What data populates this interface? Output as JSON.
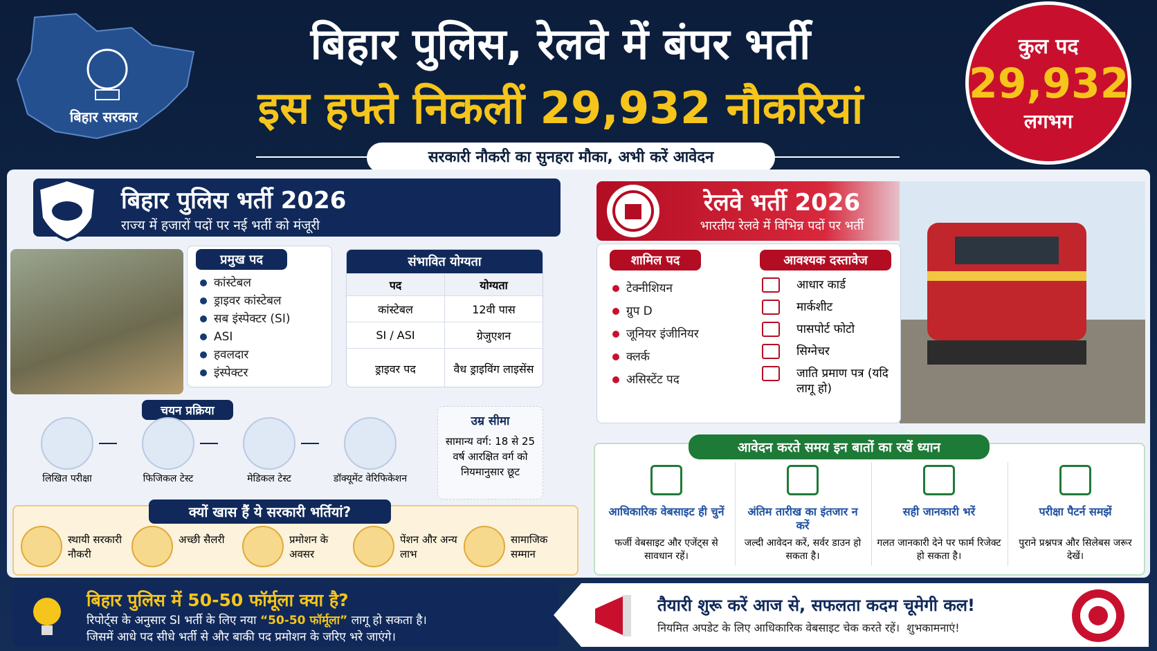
{
  "header": {
    "logo_label": "बिहार सरकार",
    "title_line1": "बिहार पुलिस, रेलवे में बंपर भर्ती",
    "title_line2": "इस हफ्ते निकलीं 29,932 नौकरियां",
    "subtitle": "सरकारी नौकरी का सुनहरा मौका, अभी करें आवेदन",
    "badge": {
      "top": "कुल पद",
      "number": "29,932",
      "bottom": "लगभग"
    }
  },
  "police": {
    "title": "बिहार पुलिस भर्ती 2026",
    "subtitle": "राज्य में हजारों पदों पर नई भर्ती को मंजूरी",
    "posts_heading": "प्रमुख पद",
    "posts": [
      "कांस्टेबल",
      "ड्राइवर कांस्टेबल",
      "सब इंस्पेक्टर (SI)",
      "ASI",
      "हवलदार",
      "इंस्पेक्टर"
    ],
    "eligibility": {
      "heading": "संभावित योग्यता",
      "columns": [
        "पद",
        "योग्यता"
      ],
      "rows": [
        [
          "कांस्टेबल",
          "12वी पास"
        ],
        [
          "SI / ASI",
          "ग्रेजुएशन"
        ],
        [
          "ड्राइवर पद",
          "वैध ड्राइविंग लाइसेंस"
        ]
      ]
    },
    "selection_heading": "चयन प्रक्रिया",
    "selection_steps": [
      "लिखित परीक्षा",
      "फिजिकल टेस्ट",
      "मेडिकल टेस्ट",
      "डॉक्यूमेंट वेरिफिकेशन"
    ],
    "age": {
      "heading": "उम्र सीमा",
      "text": "सामान्य वर्ग: 18 से 25 वर्ष आरक्षित वर्ग को नियमानुसार छूट"
    },
    "why": {
      "heading": "क्यों खास हैं ये सरकारी भर्तियां?",
      "items": [
        "स्थायी सरकारी नौकरी",
        "अच्छी सैलरी",
        "प्रमोशन के अवसर",
        "पेंशन और अन्य लाभ",
        "सामाजिक सम्मान"
      ]
    }
  },
  "railway": {
    "title": "रेलवे भर्ती 2026",
    "subtitle": "भारतीय रेलवे में विभिन्न पदों पर भर्ती",
    "posts_heading": "शामिल पद",
    "posts": [
      "टेक्नीशियन",
      "ग्रुप D",
      "जूनियर इंजीनियर",
      "क्लर्क",
      "असिस्टेंट पद"
    ],
    "docs_heading": "आवश्यक दस्तावेज",
    "docs": [
      "आधार कार्ड",
      "मार्कशीट",
      "पासपोर्ट फोटो",
      "सिग्नेचर",
      "जाति प्रमाण पत्र (यदि लागू हो)"
    ]
  },
  "tips": {
    "heading": "आवेदन करते समय इन बातों का रखें ध्यान",
    "items": [
      {
        "title": "आधिकारिक वेबसाइट ही चुनें",
        "text": "फर्जी वेबसाइट और एजेंट्स से सावधान रहें।"
      },
      {
        "title": "अंतिम तारीख का इंतजार न करें",
        "text": "जल्दी आवेदन करें, सर्वर डाउन हो सकता है।"
      },
      {
        "title": "सही जानकारी भरें",
        "text": "गलत जानकारी देने पर फार्म रिजेक्ट हो सकता है।"
      },
      {
        "title": "परीक्षा पैटर्न समझें",
        "text": "पुराने प्रश्नपत्र और सिलेबस जरूर देखें।"
      }
    ]
  },
  "footer": {
    "formula": {
      "title": "बिहार पुलिस में 50-50 फॉर्मूला क्या है?",
      "text_before": "रिपोर्ट्स के अनुसार SI भर्ती के लिए नया ",
      "highlight": "“50-50 फॉर्मूला”",
      "text_after": " लागू हो सकता है।",
      "line2": "जिसमें आधे पद सीधे भर्ती से और बाकी पद प्रमोशन के जरिए भरे जाएंगे।"
    },
    "cta": {
      "title": "तैयारी शुरू करें आज से, सफलता कदम चूमेगी कल!",
      "text": "नियमित अपडेट के लिए आधिकारिक वेबसाइट चेक करते रहें।  शुभकामनाएं!"
    }
  }
}
